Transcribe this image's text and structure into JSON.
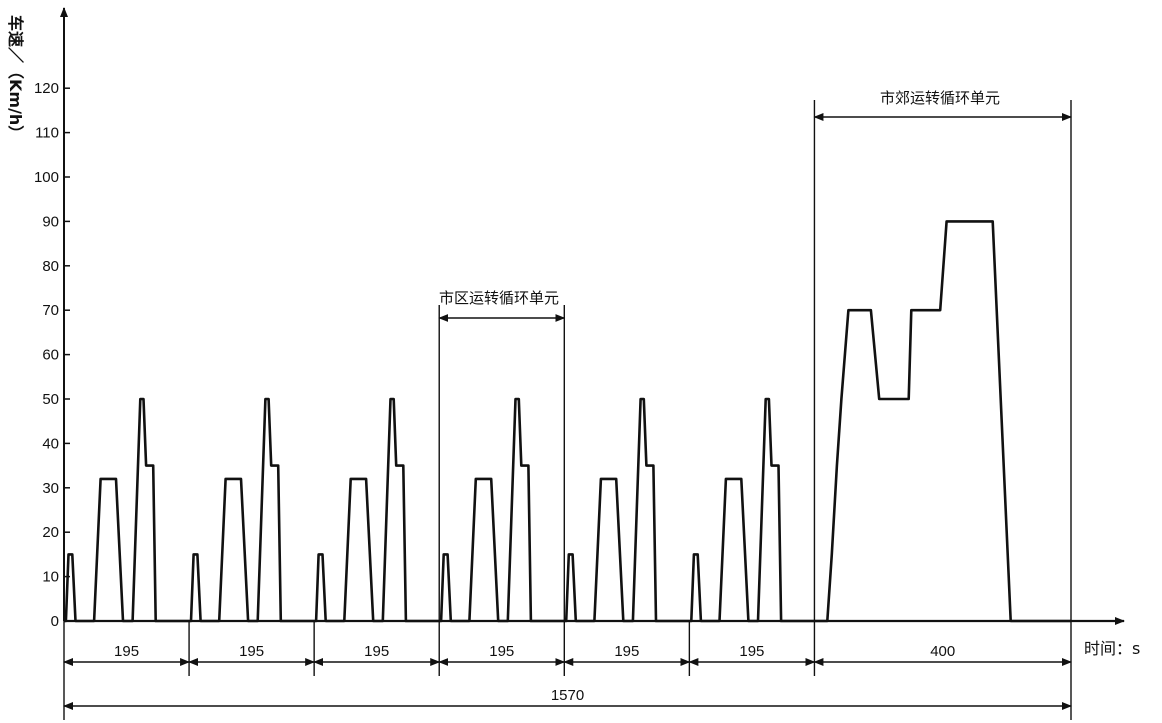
{
  "chart_data": {
    "type": "line",
    "ylabel": "车速／（Km/h）",
    "xlabel": "时间：s",
    "ylim": [
      0,
      120
    ],
    "yticks": [
      0,
      10,
      20,
      30,
      40,
      50,
      60,
      70,
      80,
      90,
      100,
      110,
      120
    ],
    "xlim": [
      0,
      1570
    ],
    "grid": false,
    "legend": "none",
    "series": [
      {
        "x": [
          0,
          2,
          6,
          9,
          13,
          16,
          20,
          28,
          35,
          50,
          52,
          54,
          56,
          58,
          61,
          73,
          81,
          94,
          104,
          107,
          120,
          124,
          130,
          137,
          139,
          150,
          155,
          162,
          170,
          190
        ],
        "y": [
          0,
          0,
          15,
          15,
          15,
          15,
          0,
          0,
          0,
          0,
          0,
          0,
          32,
          32,
          32,
          32,
          0,
          0,
          0,
          0,
          50,
          50,
          35,
          35,
          35,
          35,
          35,
          35,
          0,
          0
        ]
      }
    ],
    "city_cycle": {
      "repeats": 6,
      "duration": 195,
      "x": [
        0,
        3,
        7,
        9,
        13,
        18,
        27,
        47,
        57,
        61,
        81,
        92,
        107,
        119,
        124,
        128,
        134,
        139,
        143,
        175,
        195
      ],
      "y": [
        0,
        0,
        15,
        15,
        15,
        0,
        0,
        0,
        32,
        32,
        32,
        0,
        0,
        50,
        50,
        35,
        35,
        35,
        0,
        0,
        0
      ]
    },
    "suburban_cycle": {
      "start": 1170,
      "duration": 400,
      "x": [
        0,
        20,
        27,
        35,
        42,
        53,
        61,
        88,
        101,
        124,
        147,
        151,
        176,
        196,
        206,
        234,
        258,
        278,
        306,
        326,
        400
      ],
      "y": [
        0,
        0,
        15,
        35,
        50,
        70,
        70,
        70,
        50,
        50,
        50,
        70,
        70,
        70,
        90,
        90,
        90,
        90,
        0,
        0,
        0
      ]
    },
    "annotations": {
      "city_label": "市区运转循环单元",
      "suburban_label": "市郊运转循环单元",
      "segment_labels": [
        "195",
        "195",
        "195",
        "195",
        "195",
        "195",
        "400"
      ],
      "total_label": "1570"
    }
  }
}
